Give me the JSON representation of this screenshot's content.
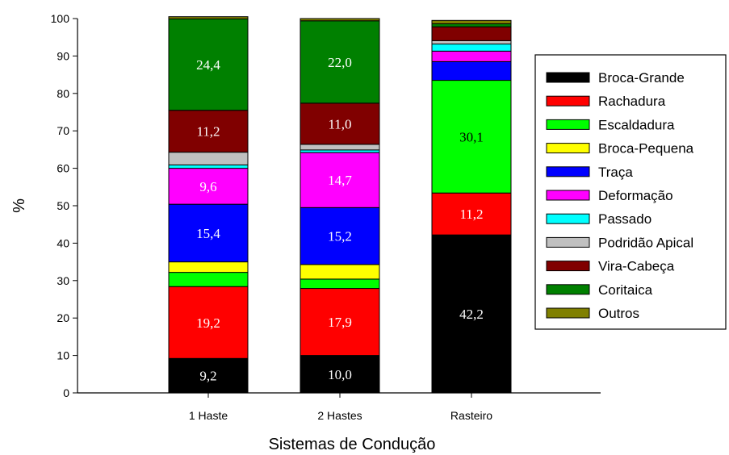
{
  "chart_data": {
    "type": "bar",
    "stacked": true,
    "title": "",
    "xlabel": "Sistemas de Condução",
    "ylabel": "%",
    "ylim": [
      0,
      100
    ],
    "yticks": [
      0,
      10,
      20,
      30,
      40,
      50,
      60,
      70,
      80,
      90,
      100
    ],
    "yticks_labels": [
      "0",
      "10",
      "20",
      "30",
      "40",
      "50",
      "60",
      "70",
      "80",
      "90",
      "100"
    ],
    "categories": [
      "1 Haste",
      "2 Hastes",
      "Rasteiro"
    ],
    "grid": false,
    "legend_position": "right",
    "series": [
      {
        "name": "Broca-Grande",
        "color": "#000000",
        "label_color": "#ffffff",
        "values": [
          9.2,
          10.0,
          42.2
        ],
        "labels": [
          "9,2",
          "10,0",
          "42,2"
        ]
      },
      {
        "name": "Rachadura",
        "color": "#ff0000",
        "label_color": "#ffffff",
        "values": [
          19.2,
          17.9,
          11.2
        ],
        "labels": [
          "19,2",
          "17,9",
          "11,2"
        ]
      },
      {
        "name": "Escaldadura",
        "color": "#00ff00",
        "label_color": "#000000",
        "values": [
          3.8,
          2.5,
          30.1
        ],
        "labels": [
          "",
          "",
          "30,1"
        ]
      },
      {
        "name": "Broca-Pequena",
        "color": "#ffff00",
        "label_color": "#000000",
        "values": [
          2.8,
          3.9,
          0.0
        ],
        "labels": [
          "",
          "",
          ""
        ]
      },
      {
        "name": "Traça",
        "color": "#0000ff",
        "label_color": "#ffffff",
        "values": [
          15.4,
          15.2,
          5.0
        ],
        "labels": [
          "15,4",
          "15,2",
          ""
        ]
      },
      {
        "name": "Deformação",
        "color": "#ff00ff",
        "label_color": "#ffffff",
        "values": [
          9.6,
          14.7,
          2.8
        ],
        "labels": [
          "9,6",
          "14,7",
          ""
        ]
      },
      {
        "name": "Passado",
        "color": "#00ffff",
        "label_color": "#000000",
        "values": [
          0.9,
          0.7,
          1.9
        ],
        "labels": [
          "",
          "",
          ""
        ]
      },
      {
        "name": "Podridão Apical",
        "color": "#c0c0c0",
        "label_color": "#000000",
        "values": [
          3.4,
          1.5,
          0.9
        ],
        "labels": [
          "",
          "",
          ""
        ]
      },
      {
        "name": "Vira-Cabeça",
        "color": "#800000",
        "label_color": "#ffffff",
        "values": [
          11.2,
          11.0,
          3.7
        ],
        "labels": [
          "11,2",
          "11,0",
          ""
        ]
      },
      {
        "name": "Coritaica",
        "color": "#008000",
        "label_color": "#ffffff",
        "values": [
          24.4,
          22.0,
          0.8
        ],
        "labels": [
          "24,4",
          "22,0",
          ""
        ]
      },
      {
        "name": "Outros",
        "color": "#808000",
        "label_color": "#000000",
        "values": [
          0.6,
          0.6,
          0.9
        ],
        "labels": [
          "",
          "",
          ""
        ]
      }
    ]
  }
}
